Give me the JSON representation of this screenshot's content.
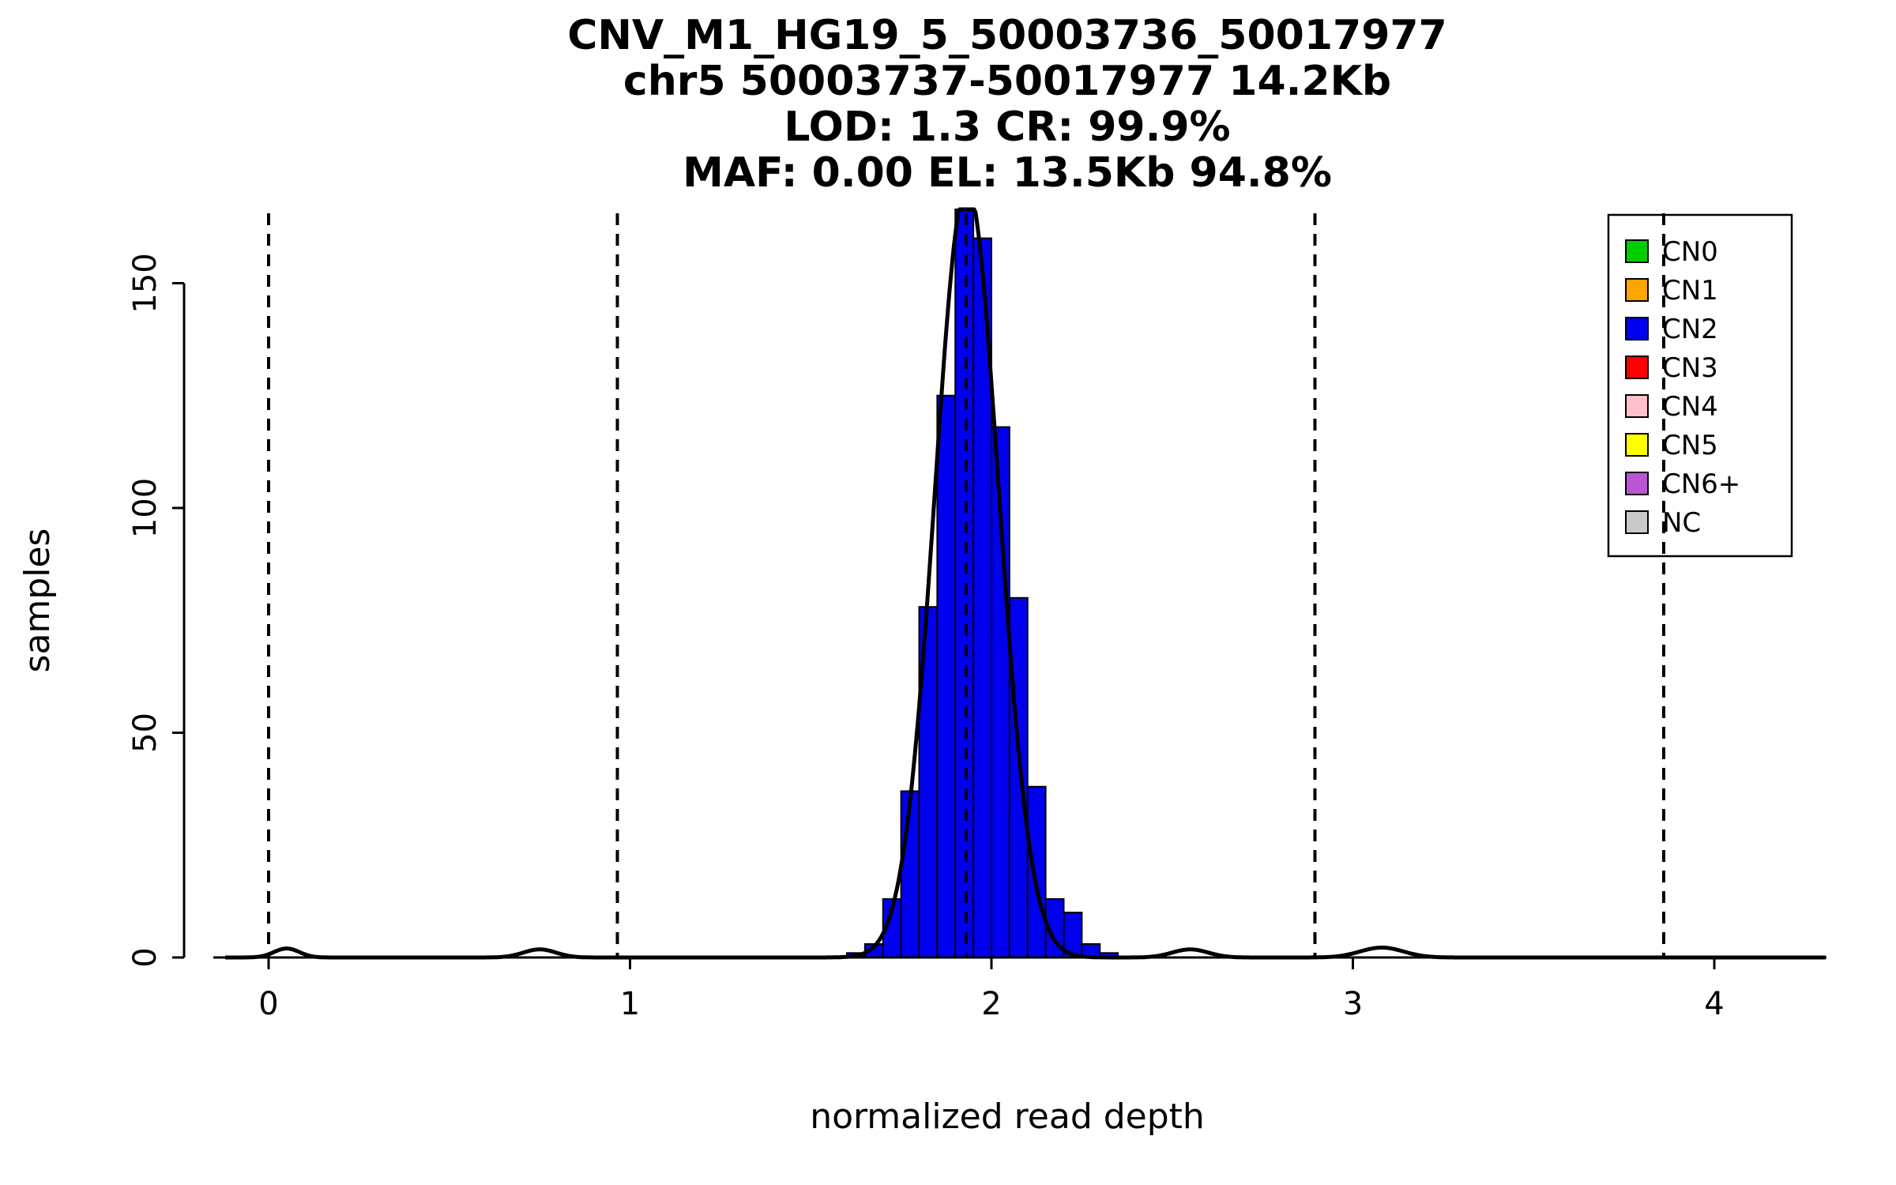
{
  "title": {
    "line1": "CNV_M1_HG19_5_50003736_50017977",
    "line2": "chr5 50003737-50017977 14.2Kb",
    "line3": "LOD: 1.3 CR: 99.9%",
    "line4": "MAF: 0.00 EL: 13.5Kb 94.8%"
  },
  "axes": {
    "x_label": "normalized read depth",
    "y_label": "samples"
  },
  "chart_data": {
    "type": "bar",
    "subtype": "histogram",
    "title": "CNV_M1_HG19_5_50003736_50017977",
    "subtitle_lines": [
      "chr5 50003737-50017977 14.2Kb",
      "LOD: 1.3 CR: 99.9%",
      "MAF: 0.00 EL: 13.5Kb 94.8%"
    ],
    "xlabel": "normalized read depth",
    "ylabel": "samples",
    "x_ticks": [
      0,
      1,
      2,
      3,
      4
    ],
    "y_ticks": [
      0,
      50,
      100,
      150
    ],
    "xlim": [
      -0.15,
      4.31
    ],
    "ylim": [
      0,
      166
    ],
    "grid": false,
    "bin_width": 0.05,
    "bar_color": "#0000EE",
    "bar_edge_color": "#000000",
    "bins": [
      {
        "x": 1.6,
        "count": 1
      },
      {
        "x": 1.65,
        "count": 3
      },
      {
        "x": 1.7,
        "count": 13
      },
      {
        "x": 1.75,
        "count": 37
      },
      {
        "x": 1.8,
        "count": 78
      },
      {
        "x": 1.85,
        "count": 125
      },
      {
        "x": 1.9,
        "count": 170
      },
      {
        "x": 1.95,
        "count": 160
      },
      {
        "x": 2.0,
        "count": 118
      },
      {
        "x": 2.05,
        "count": 80
      },
      {
        "x": 2.1,
        "count": 38
      },
      {
        "x": 2.15,
        "count": 13
      },
      {
        "x": 2.2,
        "count": 10
      },
      {
        "x": 2.25,
        "count": 3
      },
      {
        "x": 2.3,
        "count": 1
      }
    ],
    "density_curve": {
      "color": "#000000",
      "components": [
        {
          "mean": 1.932,
          "sd": 0.088,
          "amplitude": 172
        },
        {
          "mean": 0.05,
          "sd": 0.035,
          "amplitude": 2
        },
        {
          "mean": 0.75,
          "sd": 0.045,
          "amplitude": 1.8
        },
        {
          "mean": 2.55,
          "sd": 0.05,
          "amplitude": 1.8
        },
        {
          "mean": 3.08,
          "sd": 0.06,
          "amplitude": 2.2
        }
      ]
    },
    "dashed_vlines_x": [
      0,
      0.965,
      1.93,
      2.895,
      3.86
    ],
    "legend_position": "top-right"
  },
  "legend": {
    "items": [
      {
        "label": "CN0",
        "color": "#00CD00"
      },
      {
        "label": "CN1",
        "color": "#FFA500"
      },
      {
        "label": "CN2",
        "color": "#0000EE"
      },
      {
        "label": "CN3",
        "color": "#FF0000"
      },
      {
        "label": "CN4",
        "color": "#FFC0CB"
      },
      {
        "label": "CN5",
        "color": "#FFFF00"
      },
      {
        "label": "CN6+",
        "color": "#BA55D3"
      },
      {
        "label": "NC",
        "color": "#C9C9C9"
      }
    ]
  }
}
